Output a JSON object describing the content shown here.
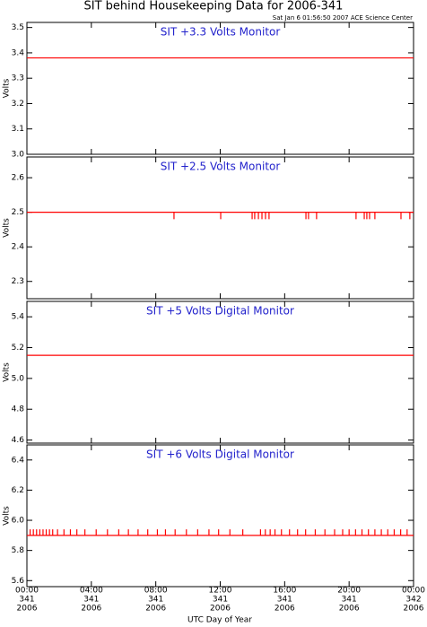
{
  "header": {
    "title": "SIT behind Housekeeping Data for 2006-341",
    "subtitle": "Sat Jan  6 01:56:50 2007 ACE Science Center"
  },
  "x_axis": {
    "xlabel": "UTC Day of Year",
    "xlim": [
      0,
      24
    ],
    "xticks": [
      {
        "value": 0,
        "label": "00:00"
      },
      {
        "value": 4,
        "label": "04:00"
      },
      {
        "value": 8,
        "label": "08:00"
      },
      {
        "value": 12,
        "label": "12:00"
      },
      {
        "value": 16,
        "label": "16:00"
      },
      {
        "value": 20,
        "label": "20:00"
      },
      {
        "value": 24,
        "label": "00:00"
      }
    ],
    "xtick_days": [
      "341",
      "341",
      "341",
      "341",
      "341",
      "341",
      "342"
    ],
    "xtick_years": [
      "2006",
      "2006",
      "2006",
      "2006",
      "2006",
      "2006",
      "2006"
    ]
  },
  "chart_data": [
    {
      "type": "line",
      "title": "SIT +3.3 Volts Monitor",
      "ylabel": "Volts",
      "ylim": [
        3.0,
        3.52
      ],
      "yticks": [
        {
          "value": 3.0,
          "label": "3.0"
        },
        3.1,
        3.2,
        3.3,
        3.4,
        3.5
      ],
      "series": [
        {
          "color": "#ff0000",
          "x": [
            0,
            24
          ],
          "values": [
            3.38,
            3.38
          ]
        }
      ]
    },
    {
      "type": "line",
      "title": "SIT +2.5 Volts Monitor",
      "ylabel": "Volts",
      "ylim": [
        2.25,
        2.66
      ],
      "yticks": [
        2.3,
        2.4,
        2.5,
        2.6
      ],
      "series": [
        {
          "color": "#ff0000",
          "x": [
            0,
            24
          ],
          "values": [
            2.5,
            2.5
          ]
        }
      ],
      "spikes": {
        "x": [
          9.13,
          12.03,
          13.98,
          14.14,
          14.37,
          14.59,
          14.81,
          15.03,
          17.32,
          17.48,
          17.98,
          20.43,
          20.94,
          21.1,
          21.27,
          21.6,
          23.22,
          23.77
        ],
        "values": [
          2.48,
          2.48,
          2.48,
          2.48,
          2.48,
          2.48,
          2.48,
          2.48,
          2.48,
          2.48,
          2.48,
          2.48,
          2.48,
          2.48,
          2.48,
          2.48,
          2.48,
          2.48
        ]
      }
    },
    {
      "type": "line",
      "title": "SIT +5 Volts Digital Monitor",
      "ylabel": "Volts",
      "ylim": [
        4.58,
        5.5
      ],
      "yticks": [
        4.6,
        4.8,
        {
          "value": 5.0,
          "label": "5.0"
        },
        5.2,
        5.4
      ],
      "series": [
        {
          "color": "#ff0000",
          "x": [
            0,
            24
          ],
          "values": [
            5.15,
            5.15
          ]
        }
      ]
    },
    {
      "type": "line",
      "title": "SIT +6 Volts Digital Monitor",
      "ylabel": "Volts",
      "ylim": [
        5.56,
        6.5
      ],
      "yticks": [
        5.6,
        5.8,
        {
          "value": 6.0,
          "label": "6.0"
        },
        6.2,
        6.4
      ],
      "series": [
        {
          "color": "#ff0000",
          "x": [
            0,
            24
          ],
          "values": [
            5.9,
            5.9
          ]
        }
      ],
      "spikes": {
        "x": [
          0.2,
          0.4,
          0.6,
          0.8,
          1.0,
          1.2,
          1.4,
          1.6,
          1.9,
          2.3,
          2.7,
          3.1,
          3.6,
          4.3,
          5.0,
          5.7,
          6.3,
          6.9,
          7.5,
          8.1,
          8.6,
          9.2,
          9.9,
          10.6,
          11.3,
          11.9,
          12.6,
          13.4,
          14.5,
          14.8,
          15.1,
          15.4,
          15.8,
          16.3,
          16.8,
          17.3,
          17.9,
          18.5,
          19.1,
          19.6,
          20.0,
          20.4,
          20.8,
          21.2,
          21.6,
          22.0,
          22.4,
          22.8,
          23.2,
          23.6
        ],
        "values": [
          5.94,
          5.94,
          5.94,
          5.94,
          5.94,
          5.94,
          5.94,
          5.94,
          5.94,
          5.94,
          5.94,
          5.94,
          5.94,
          5.94,
          5.94,
          5.94,
          5.94,
          5.94,
          5.94,
          5.94,
          5.94,
          5.94,
          5.94,
          5.94,
          5.94,
          5.94,
          5.94,
          5.94,
          5.94,
          5.94,
          5.94,
          5.94,
          5.94,
          5.94,
          5.94,
          5.94,
          5.94,
          5.94,
          5.94,
          5.94,
          5.94,
          5.94,
          5.94,
          5.94,
          5.94,
          5.94,
          5.94,
          5.94,
          5.94,
          5.94
        ]
      }
    }
  ]
}
